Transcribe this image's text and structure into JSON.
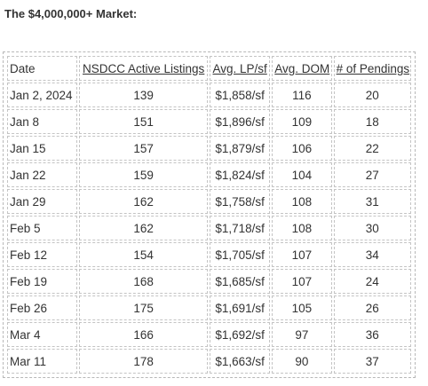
{
  "heading": "The $4,000,000+ Market:",
  "table": {
    "headers": [
      "Date",
      "NSDCC Active Listings",
      "Avg. LP/sf",
      "Avg. DOM",
      "# of Pendings"
    ],
    "rows": [
      [
        "Jan 2, 2024",
        "139",
        "$1,858/sf",
        "116",
        "20"
      ],
      [
        "Jan 8",
        "151",
        "$1,896/sf",
        "109",
        "18"
      ],
      [
        "Jan 15",
        "157",
        "$1,879/sf",
        "106",
        "22"
      ],
      [
        "Jan 22",
        "159",
        "$1,824/sf",
        "104",
        "27"
      ],
      [
        "Jan 29",
        "162",
        "$1,758/sf",
        "108",
        "31"
      ],
      [
        "Feb 5",
        "162",
        "$1,718/sf",
        "108",
        "30"
      ],
      [
        "Feb 12",
        "154",
        "$1,705/sf",
        "107",
        "34"
      ],
      [
        "Feb 19",
        "168",
        "$1,685/sf",
        "107",
        "24"
      ],
      [
        "Feb 26",
        "175",
        "$1,691/sf",
        "105",
        "26"
      ],
      [
        "Mar 4",
        "166",
        "$1,692/sf",
        "97",
        "36"
      ],
      [
        "Mar 11",
        "178",
        "$1,663/sf",
        "90",
        "37"
      ]
    ]
  }
}
